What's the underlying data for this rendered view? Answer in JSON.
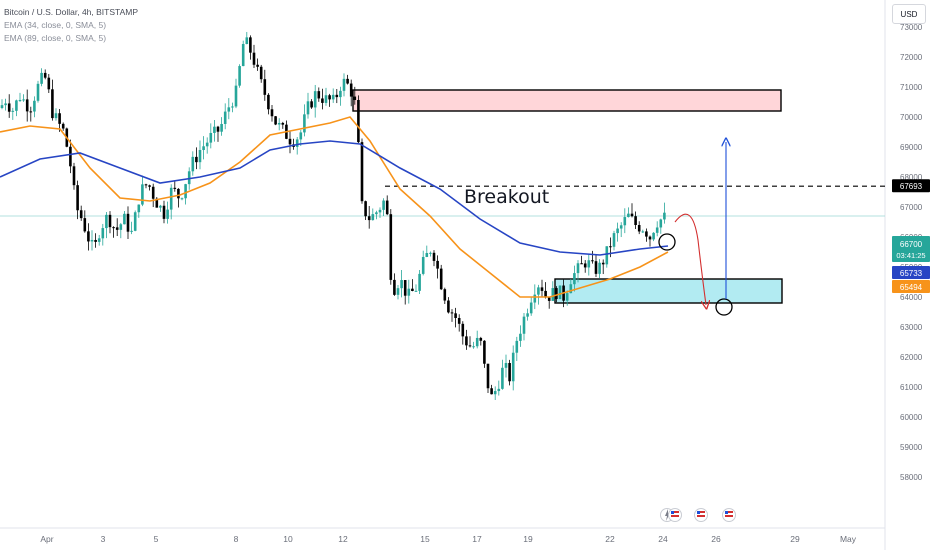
{
  "legend": {
    "symbol": "Bitcoin / U.S. Dollar, 4h, BITSTAMP",
    "ema1": "EMA (34, close, 0, SMA, 5)",
    "ema2": "EMA (89, close, 0, SMA, 5)"
  },
  "currency": "USD",
  "annotation": {
    "breakout": "Breakout"
  },
  "colors": {
    "up": "#26a69a",
    "down": "#000000",
    "ema34": "#f7931a",
    "ema89": "#2745c4",
    "supply_zone": "#ffd6d9",
    "demand_zone": "#b2ebf2",
    "arrow_down": "#d32f2f",
    "arrow_up": "#1e4fd8"
  },
  "chart_data": {
    "type": "candlestick",
    "ylim": [
      57500,
      74000
    ],
    "y_ticks": [
      58000,
      59000,
      60000,
      61000,
      62000,
      63000,
      64000,
      65000,
      66000,
      67000,
      68000,
      69000,
      70000,
      71000,
      72000,
      73000
    ],
    "x_tick_labels": [
      "Apr",
      "3",
      "5",
      "8",
      "10",
      "12",
      "15",
      "17",
      "19",
      "22",
      "24",
      "26",
      "29",
      "May"
    ],
    "series_path": [
      [
        0,
        70300
      ],
      [
        6,
        70600
      ],
      [
        12,
        70200
      ],
      [
        20,
        70700
      ],
      [
        30,
        70300
      ],
      [
        40,
        71200
      ],
      [
        46,
        71300
      ],
      [
        52,
        70200
      ],
      [
        58,
        69800
      ],
      [
        64,
        69500
      ],
      [
        70,
        68500
      ],
      [
        76,
        67000
      ],
      [
        82,
        66600
      ],
      [
        88,
        66000
      ],
      [
        94,
        65500
      ],
      [
        100,
        66300
      ],
      [
        108,
        66700
      ],
      [
        116,
        66200
      ],
      [
        124,
        66600
      ],
      [
        132,
        66100
      ],
      [
        140,
        67500
      ],
      [
        148,
        67800
      ],
      [
        156,
        67200
      ],
      [
        164,
        66800
      ],
      [
        172,
        67600
      ],
      [
        180,
        67300
      ],
      [
        190,
        68300
      ],
      [
        200,
        68900
      ],
      [
        210,
        69300
      ],
      [
        220,
        69600
      ],
      [
        228,
        70300
      ],
      [
        236,
        70800
      ],
      [
        244,
        72600
      ],
      [
        252,
        72100
      ],
      [
        260,
        71200
      ],
      [
        268,
        70500
      ],
      [
        276,
        69800
      ],
      [
        284,
        69500
      ],
      [
        292,
        69200
      ],
      [
        300,
        69400
      ],
      [
        308,
        70300
      ],
      [
        316,
        70800
      ],
      [
        324,
        70600
      ],
      [
        334,
        70500
      ],
      [
        342,
        71200
      ],
      [
        350,
        71000
      ],
      [
        356,
        70300
      ],
      [
        362,
        67000
      ],
      [
        370,
        66600
      ],
      [
        378,
        66900
      ],
      [
        386,
        67300
      ],
      [
        392,
        64200
      ],
      [
        400,
        64600
      ],
      [
        408,
        64000
      ],
      [
        416,
        64300
      ],
      [
        424,
        65200
      ],
      [
        432,
        65700
      ],
      [
        440,
        64600
      ],
      [
        448,
        63700
      ],
      [
        456,
        63300
      ],
      [
        464,
        62600
      ],
      [
        472,
        62300
      ],
      [
        480,
        62600
      ],
      [
        486,
        61300
      ],
      [
        492,
        60600
      ],
      [
        498,
        61100
      ],
      [
        504,
        61700
      ],
      [
        510,
        61300
      ],
      [
        516,
        62500
      ],
      [
        522,
        63100
      ],
      [
        528,
        63700
      ],
      [
        534,
        64300
      ],
      [
        540,
        64500
      ],
      [
        546,
        64000
      ],
      [
        552,
        64100
      ],
      [
        558,
        64200
      ],
      [
        564,
        64000
      ],
      [
        570,
        64600
      ],
      [
        578,
        64900
      ],
      [
        586,
        65200
      ],
      [
        594,
        64900
      ],
      [
        600,
        65000
      ],
      [
        606,
        65400
      ],
      [
        612,
        65900
      ],
      [
        620,
        66300
      ],
      [
        628,
        66700
      ],
      [
        636,
        66400
      ],
      [
        644,
        66300
      ],
      [
        650,
        66000
      ],
      [
        656,
        66500
      ],
      [
        662,
        66600
      ],
      [
        668,
        66700
      ]
    ],
    "series": [
      {
        "name": "EMA (34, close, 0, SMA, 5)",
        "color": "#f7931a",
        "points": [
          [
            0,
            69500
          ],
          [
            30,
            69700
          ],
          [
            60,
            69600
          ],
          [
            90,
            68300
          ],
          [
            120,
            67300
          ],
          [
            150,
            67200
          ],
          [
            180,
            67400
          ],
          [
            210,
            67800
          ],
          [
            240,
            68500
          ],
          [
            270,
            69400
          ],
          [
            300,
            69600
          ],
          [
            330,
            69800
          ],
          [
            350,
            70000
          ],
          [
            370,
            69200
          ],
          [
            400,
            67600
          ],
          [
            430,
            66700
          ],
          [
            460,
            65600
          ],
          [
            490,
            64800
          ],
          [
            520,
            64000
          ],
          [
            550,
            64000
          ],
          [
            580,
            64300
          ],
          [
            610,
            64600
          ],
          [
            640,
            65000
          ],
          [
            668,
            65500
          ]
        ]
      },
      {
        "name": "EMA (89, close, 0, SMA, 5)",
        "color": "#2745c4",
        "points": [
          [
            0,
            68000
          ],
          [
            40,
            68600
          ],
          [
            80,
            68800
          ],
          [
            120,
            68300
          ],
          [
            160,
            67800
          ],
          [
            200,
            68000
          ],
          [
            240,
            68300
          ],
          [
            270,
            68900
          ],
          [
            300,
            69100
          ],
          [
            330,
            69200
          ],
          [
            360,
            69100
          ],
          [
            400,
            68300
          ],
          [
            440,
            67600
          ],
          [
            480,
            66600
          ],
          [
            520,
            65800
          ],
          [
            560,
            65500
          ],
          [
            600,
            65400
          ],
          [
            640,
            65600
          ],
          [
            668,
            65700
          ]
        ]
      }
    ],
    "price_levels": [
      {
        "label": "67693",
        "value": 67693,
        "style": "dashed",
        "bg": "#000000"
      },
      {
        "label": "66700",
        "value": 66700,
        "bg": "#26a69a"
      },
      {
        "label": "03:41:25",
        "value": 66700,
        "bg": "#26a69a"
      },
      {
        "label": "65733",
        "value": 65733,
        "bg": "#2745c4"
      },
      {
        "label": "65494",
        "value": 65494,
        "bg": "#f7931a"
      }
    ],
    "zones": [
      {
        "kind": "supply",
        "y1": 70200,
        "y2": 70900
      },
      {
        "kind": "demand",
        "y1": 63800,
        "y2": 64600
      }
    ]
  }
}
